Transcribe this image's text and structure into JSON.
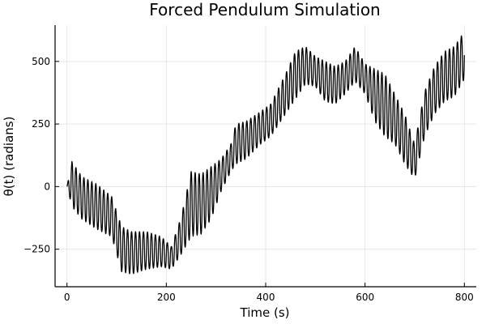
{
  "chart_data": {
    "type": "line",
    "title": "Forced Pendulum Simulation",
    "xlabel": "Time (s)",
    "ylabel": "θ(t) (radians)",
    "xlim": [
      -24,
      824
    ],
    "ylim": [
      -400,
      645
    ],
    "x_ticks": [
      {
        "value": 0,
        "label": "0"
      },
      {
        "value": 200,
        "label": "200"
      },
      {
        "value": 400,
        "label": "400"
      },
      {
        "value": 600,
        "label": "600"
      },
      {
        "value": 800,
        "label": "800"
      }
    ],
    "y_ticks": [
      {
        "value": -250,
        "label": "−250"
      },
      {
        "value": 0,
        "label": "0"
      },
      {
        "value": 250,
        "label": "250"
      },
      {
        "value": 500,
        "label": "500"
      }
    ],
    "grid": true,
    "legend": "none",
    "series_color": "#000000",
    "oscillation_period_s": 8,
    "envelope": {
      "t": [
        0,
        10,
        30,
        60,
        90,
        110,
        130,
        160,
        190,
        210,
        230,
        250,
        270,
        290,
        310,
        330,
        340,
        360,
        390,
        410,
        440,
        460,
        480,
        500,
        520,
        540,
        560,
        580,
        600,
        620,
        640,
        660,
        680,
        700,
        720,
        740,
        760,
        780,
        800
      ],
      "upper": [
        0,
        100,
        40,
        10,
        -40,
        -160,
        -180,
        -180,
        -200,
        -240,
        -120,
        60,
        50,
        80,
        110,
        170,
        250,
        260,
        300,
        330,
        450,
        540,
        560,
        520,
        500,
        480,
        500,
        560,
        490,
        470,
        450,
        370,
        290,
        170,
        380,
        480,
        540,
        560,
        620
      ],
      "lower": [
        0,
        -80,
        -130,
        -170,
        -200,
        -340,
        -350,
        -330,
        -320,
        -330,
        -270,
        -200,
        -190,
        -130,
        -20,
        60,
        90,
        110,
        170,
        200,
        290,
        350,
        410,
        400,
        340,
        330,
        370,
        420,
        370,
        260,
        200,
        170,
        90,
        30,
        200,
        290,
        340,
        360,
        430
      ]
    }
  }
}
